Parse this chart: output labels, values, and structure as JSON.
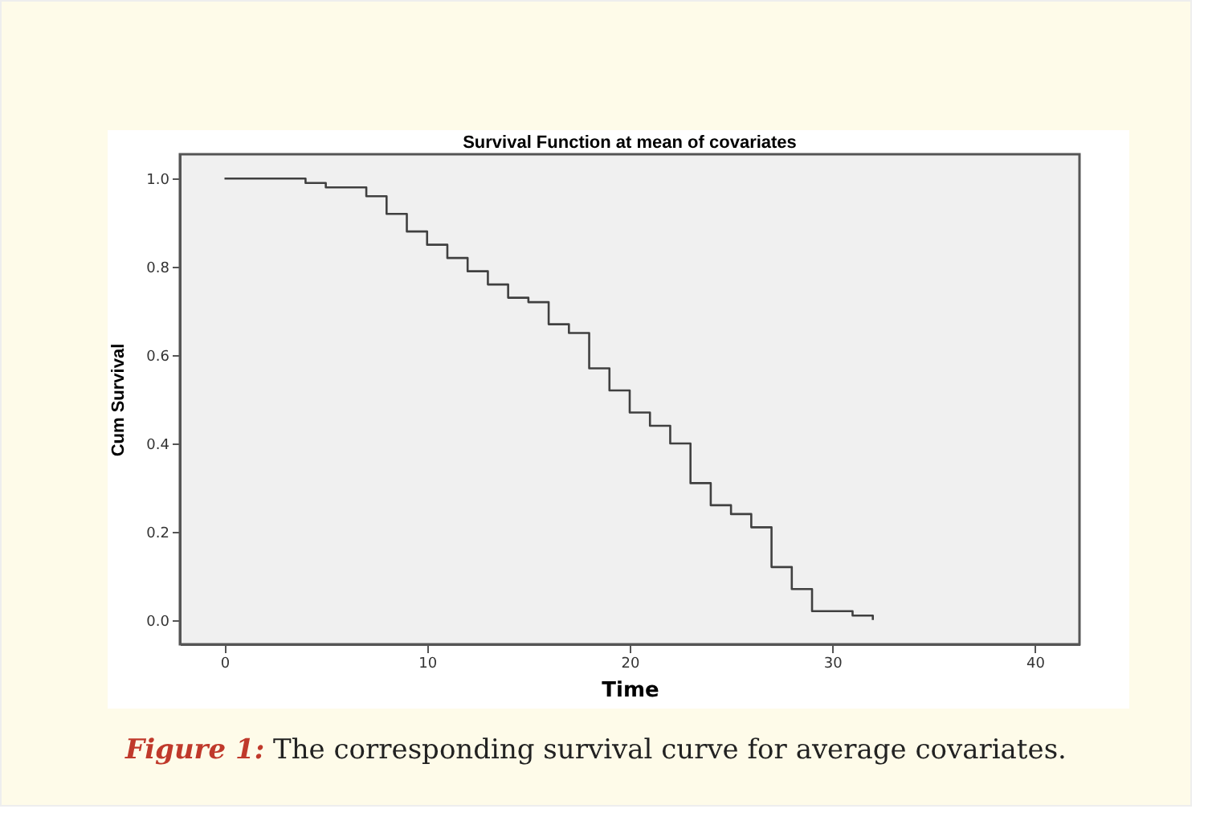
{
  "chart_data": {
    "type": "step",
    "title": "Survival Function at mean of covariates",
    "xlabel": "Time",
    "ylabel": "Cum Survival",
    "x": [
      0,
      4,
      5,
      7,
      8,
      9,
      10,
      11,
      12,
      13,
      14,
      15,
      16,
      17,
      18,
      19,
      20,
      21,
      22,
      23,
      24,
      25,
      26,
      27,
      28,
      29,
      31,
      32
    ],
    "series": [
      {
        "color": "#404040",
        "values": [
          1.0,
          0.99,
          0.98,
          0.96,
          0.92,
          0.88,
          0.85,
          0.82,
          0.79,
          0.76,
          0.73,
          0.72,
          0.67,
          0.65,
          0.57,
          0.52,
          0.47,
          0.44,
          0.4,
          0.31,
          0.26,
          0.24,
          0.21,
          0.12,
          0.07,
          0.02,
          0.01,
          0.0
        ]
      }
    ],
    "xlim": [
      -2.2,
      42.2
    ],
    "xticks": [
      0,
      10,
      20,
      30,
      40
    ],
    "ylim": [
      -0.055,
      1.055
    ],
    "yticks": [
      {
        "value": 0,
        "label": "0.0"
      },
      {
        "value": 0.2,
        "label": "0.2"
      },
      {
        "value": 0.4,
        "label": "0.4"
      },
      {
        "value": 0.6,
        "label": "0.6"
      },
      {
        "value": 0.8,
        "label": "0.8"
      },
      {
        "value": 1,
        "label": "1.0"
      }
    ],
    "grid": false,
    "marker": "none",
    "line_style": "solid",
    "annotations": [
      "Figure 1: The corresponding survival curve for average covariates."
    ]
  }
}
